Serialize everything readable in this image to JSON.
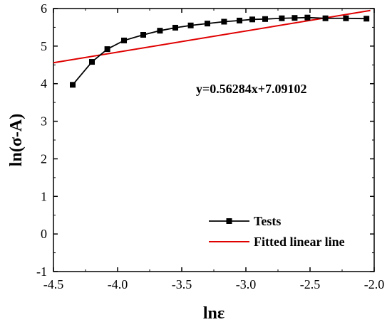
{
  "chart_data": {
    "type": "line",
    "xlabel": "lnε",
    "ylabel": "ln(σ-A)",
    "xlim": [
      -4.5,
      -2.0
    ],
    "ylim": [
      -1,
      6
    ],
    "x_ticks": [
      "-4.5",
      "-4.0",
      "-3.5",
      "-3.0",
      "-2.5",
      "-2.0"
    ],
    "y_ticks": [
      "-1",
      "0",
      "1",
      "2",
      "3",
      "4",
      "5",
      "6"
    ],
    "annotation": "y=0.56284x+7.09102",
    "legend_position": "bottom-right",
    "series": [
      {
        "name": "Tests",
        "style": "line-with-square-markers",
        "color": "#000000",
        "x": [
          -4.35,
          -4.2,
          -4.08,
          -3.95,
          -3.8,
          -3.67,
          -3.55,
          -3.43,
          -3.3,
          -3.17,
          -3.05,
          -2.95,
          -2.85,
          -2.72,
          -2.62,
          -2.52,
          -2.38,
          -2.22,
          -2.06
        ],
        "y": [
          3.97,
          4.58,
          4.92,
          5.15,
          5.3,
          5.41,
          5.49,
          5.55,
          5.6,
          5.65,
          5.68,
          5.71,
          5.72,
          5.74,
          5.75,
          5.76,
          5.74,
          5.74,
          5.73
        ]
      },
      {
        "name": "Fitted linear line",
        "style": "line",
        "color": "#e00000",
        "x": [
          -4.5,
          -2.03
        ],
        "y": [
          4.558,
          5.948
        ]
      }
    ]
  }
}
